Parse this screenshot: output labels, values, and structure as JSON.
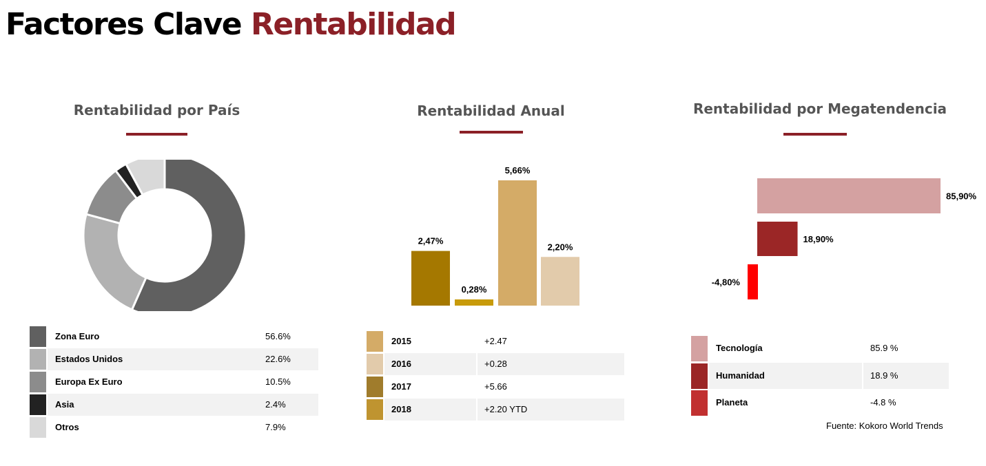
{
  "page": {
    "title_main": "Factores Clave",
    "title_accent": "Rentabilidad",
    "source": "Fuente: Kokoro World Trends"
  },
  "colors": {
    "accent": "#8b2027"
  },
  "chart_data": [
    {
      "type": "pie",
      "title": "Rentabilidad por País",
      "donut": true,
      "categories": [
        "Zona Euro",
        "Estados Unidos",
        "Europa Ex Euro",
        "Asia",
        "Otros"
      ],
      "values": [
        56.6,
        22.6,
        10.5,
        2.4,
        7.9
      ],
      "value_labels": [
        "56.6%",
        "22.6%",
        "10.5%",
        "2.4%",
        "7.9%"
      ],
      "colors": [
        "#606060",
        "#b2b2b2",
        "#8c8c8c",
        "#222222",
        "#d9d9d9"
      ]
    },
    {
      "type": "bar",
      "title": "Rentabilidad Anual",
      "categories": [
        "2015",
        "2016",
        "2017",
        "2018"
      ],
      "values": [
        2.47,
        0.28,
        5.66,
        2.2
      ],
      "data_labels": [
        "2,47%",
        "0,28%",
        "5,66%",
        "2,20%"
      ],
      "bar_colors": [
        "#a57800",
        "#c89b0a",
        "#d4ab67",
        "#e2cbab"
      ],
      "legend": [
        {
          "label": "2015",
          "value": "+2.47",
          "color": "#d4ab67"
        },
        {
          "label": "2016",
          "value": "+0.28",
          "color": "#e2cbab"
        },
        {
          "label": "2017",
          "value": "+5.66",
          "color": "#a07c2c"
        },
        {
          "label": "2018",
          "value": "+2.20 YTD",
          "color": "#bf9430"
        }
      ]
    },
    {
      "type": "bar",
      "orientation": "horizontal",
      "title": "Rentabilidad por Megatendencia",
      "categories": [
        "Tecnología",
        "Humanidad",
        "Planeta"
      ],
      "values": [
        85.9,
        18.9,
        -4.8
      ],
      "data_labels": [
        "85,90%",
        "18,90%",
        "-4,80%"
      ],
      "bar_colors": [
        "#d4a1a1",
        "#9b2626",
        "#ff0000"
      ],
      "legend": [
        {
          "label": "Tecnología",
          "value": "85.9 %",
          "color": "#d4a1a1"
        },
        {
          "label": "Humanidad",
          "value": "18.9 %",
          "color": "#9b2626"
        },
        {
          "label": "Planeta",
          "value": "-4.8 %",
          "color": "#c13030"
        }
      ]
    }
  ]
}
